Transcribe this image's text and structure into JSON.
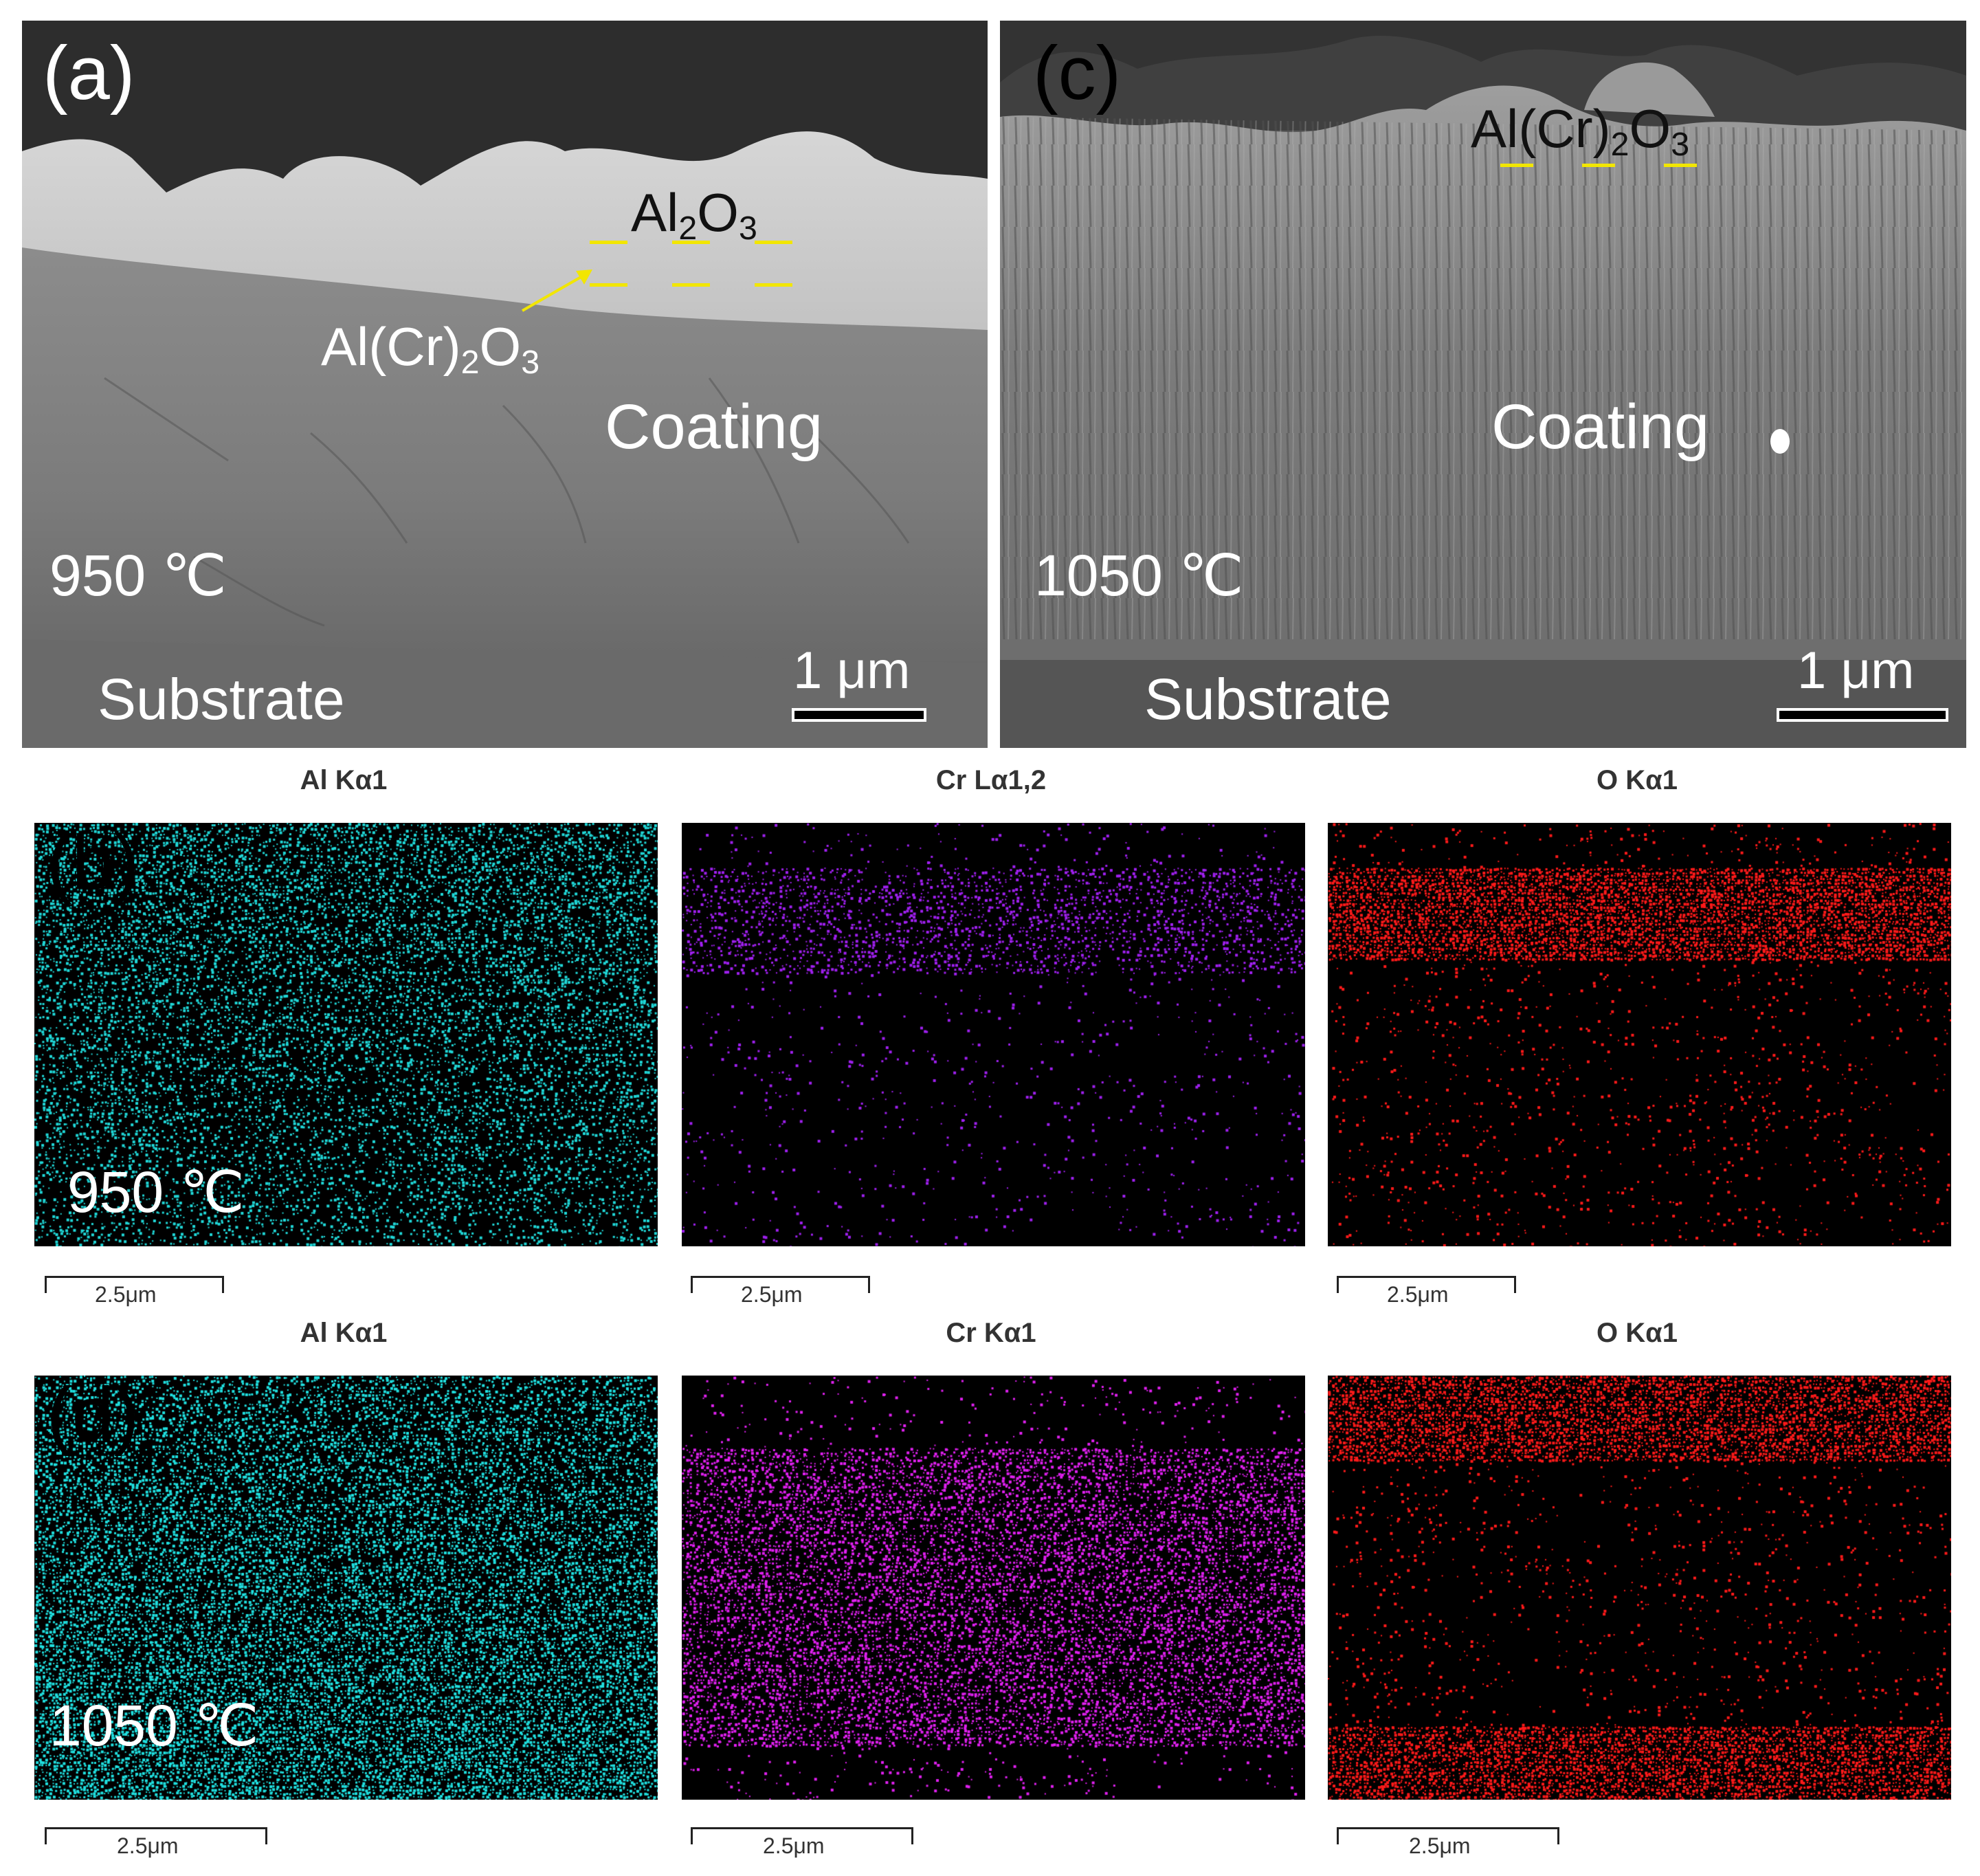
{
  "panel_a": {
    "letter": "(a)",
    "oxide_outer": {
      "base": "Al",
      "sub1": "2",
      "mid": "O",
      "sub2": "3"
    },
    "oxide_inner": {
      "base": "Al(Cr)",
      "sub1": "2",
      "mid": "O",
      "sub2": "3"
    },
    "coating_label": "Coating",
    "temperature": "950 ℃",
    "substrate_label": "Substrate",
    "scale_label": "1 μm",
    "colors": {
      "marker": "#f2e600",
      "arrow": "#f2e600"
    }
  },
  "panel_c": {
    "letter": "(c)",
    "oxide": {
      "base": "Al(Cr)",
      "sub1": "2",
      "mid": "O",
      "sub2": "3"
    },
    "coating_label": "Coating",
    "temperature": "1050 ℃",
    "substrate_label": "Substrate",
    "scale_label": "1 μm",
    "colors": {
      "marker": "#f2e600"
    }
  },
  "panel_b": {
    "letter": "(b)",
    "temperature": "950 ℃",
    "maps": [
      {
        "title": "Al Kα1",
        "scale": "2.5μm",
        "color": "#20d8d8",
        "icon": "al-map"
      },
      {
        "title": "Cr Lα1,2",
        "scale": "2.5μm",
        "color": "#a020f0",
        "icon": "cr-map"
      },
      {
        "title": "O Kα1",
        "scale": "2.5μm",
        "color": "#ff1a1a",
        "icon": "o-map"
      }
    ]
  },
  "panel_d": {
    "letter": "(d)",
    "temperature": "1050 ℃",
    "maps": [
      {
        "title": "Al Kα1",
        "scale": "2.5μm",
        "color": "#20e0e0",
        "icon": "al-map"
      },
      {
        "title": "Cr Kα1",
        "scale": "2.5μm",
        "color": "#e020f0",
        "icon": "cr-map"
      },
      {
        "title": "O Kα1",
        "scale": "2.5μm",
        "color": "#ff1a1a",
        "icon": "o-map"
      }
    ]
  }
}
